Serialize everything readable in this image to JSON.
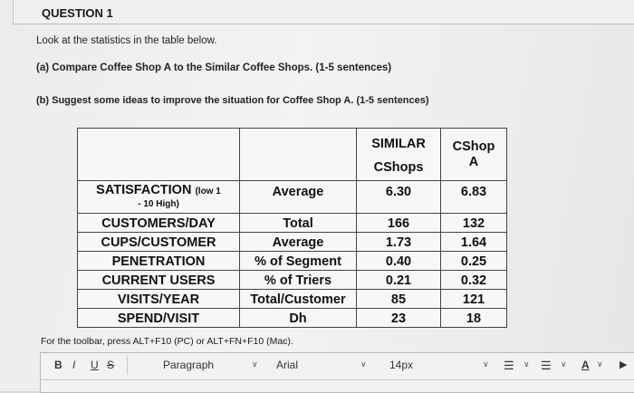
{
  "question": {
    "title": "QUESTION 1",
    "intro": "Look at the statistics in the table below.",
    "part_a": "(a) Compare Coffee Shop A to the Similar Coffee Shops. (1-5 sentences)",
    "part_b": "(b) Suggest some ideas to improve the situation for Coffee Shop A. (1-5 sentences)"
  },
  "table": {
    "header_similar_1": "SIMILAR",
    "header_similar_2": "CShops",
    "header_shop_1": "CShop",
    "header_shop_2": "A",
    "rows": [
      {
        "metric": "SATISFACTION",
        "metric_note_1": "(low 1",
        "metric_note_2": "- 10 High)",
        "unit": "Average",
        "similar": "6.30",
        "shop": "6.83"
      },
      {
        "metric": "CUSTOMERS/DAY",
        "unit": "Total",
        "similar": "166",
        "shop": "132"
      },
      {
        "metric": "CUPS/CUSTOMER",
        "unit": "Average",
        "similar": "1.73",
        "shop": "1.64"
      },
      {
        "metric": "PENETRATION",
        "unit": "% of Segment",
        "similar": "0.40",
        "shop": "0.25"
      },
      {
        "metric": "CURRENT USERS",
        "unit": "% of Triers",
        "similar": "0.21",
        "shop": "0.32"
      },
      {
        "metric": "VISITS/YEAR",
        "unit": "Total/Customer",
        "similar": "85",
        "shop": "121"
      },
      {
        "metric": "SPEND/VISIT",
        "unit": "Dh",
        "similar": "23",
        "shop": "18"
      }
    ]
  },
  "editor": {
    "toolbar_hint": "For the toolbar, press ALT+F10 (PC) or ALT+FN+F10 (Mac).",
    "bold": "B",
    "italic": "I",
    "underline": "U",
    "strike": "S",
    "paragraph": "Paragraph",
    "font": "Arial",
    "size": "14px"
  }
}
